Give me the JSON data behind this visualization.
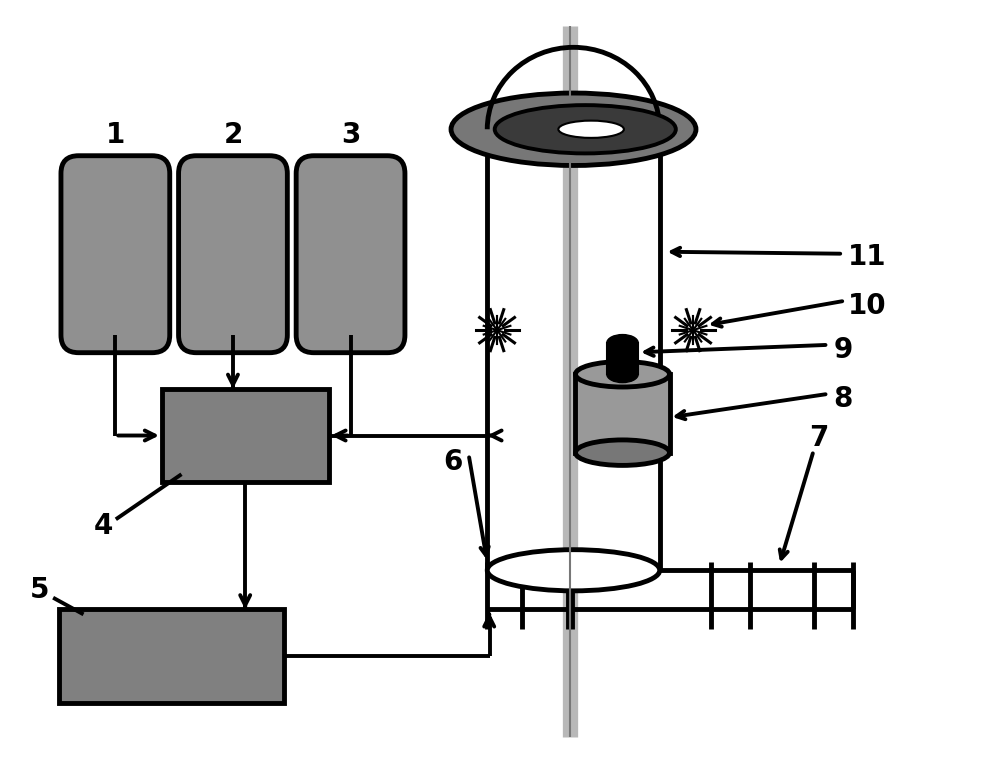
{
  "bg_color": "#ffffff",
  "gray_dark": "#3a3a3a",
  "gray_med": "#777777",
  "gray_light": "#999999",
  "gray_cyl": "#909090",
  "black": "#000000",
  "box_color": "#808080",
  "rod_color": "#b8b8b8",
  "lw_main": 2.8,
  "lw_thick": 3.5,
  "fontsize_label": 20
}
